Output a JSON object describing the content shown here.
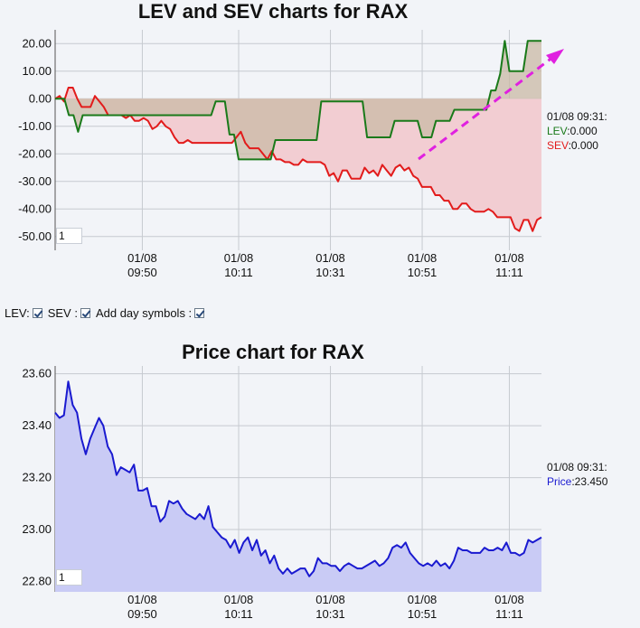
{
  "chart_data": [
    {
      "type": "line",
      "title": "LEV and SEV charts for RAX",
      "x_ticks": [
        "01/08|09:50",
        "01/08|10:11",
        "01/08|10:31",
        "01/08|10:51",
        "01/08|11:11"
      ],
      "y_ticks": [
        "20.00",
        "10.00",
        "0.00",
        "-10.00",
        "-20.00",
        "-30.00",
        "-40.00",
        "-50.00"
      ],
      "ylim": [
        -55,
        25
      ],
      "xlim": [
        0,
        106
      ],
      "grid": true,
      "series": [
        {
          "name": "LEV",
          "color": "#1a7a1a",
          "fill_color": "#d3d8d6",
          "values": [
            0,
            0,
            0,
            -6,
            -6,
            -12,
            -6,
            -6,
            -6,
            -6,
            -6,
            -6,
            -6,
            -6,
            -6,
            -6,
            -6,
            -6,
            -6,
            -6,
            -6,
            -6,
            -6,
            -6,
            -6,
            -6,
            -6,
            -6,
            -6,
            -6,
            -6,
            -6,
            -6,
            -6,
            -6,
            -1,
            -1,
            -1,
            -13,
            -13,
            -22,
            -22,
            -22,
            -22,
            -22,
            -22,
            -22,
            -22,
            -15,
            -15,
            -15,
            -15,
            -15,
            -15,
            -15,
            -15,
            -15,
            -15,
            -1,
            -1,
            -1,
            -1,
            -1,
            -1,
            -1,
            -1,
            -1,
            -1,
            -14,
            -14,
            -14,
            -14,
            -14,
            -14,
            -8,
            -8,
            -8,
            -8,
            -8,
            -8,
            -14,
            -14,
            -14,
            -8,
            -8,
            -8,
            -8,
            -4,
            -4,
            -4,
            -4,
            -4,
            -4,
            -4,
            -4,
            3,
            3,
            9,
            21,
            10,
            10,
            10,
            10,
            21,
            21,
            21,
            21
          ]
        },
        {
          "name": "SEV",
          "color": "#e21b1b",
          "fill_color": "#f2cdd2",
          "values": [
            0,
            1,
            -1,
            4,
            4,
            0,
            -3,
            -3,
            -3,
            1,
            -1,
            -3,
            -6,
            -6,
            -6,
            -6,
            -7,
            -6,
            -8,
            -8,
            -7,
            -8,
            -11,
            -10,
            -8,
            -10,
            -11,
            -14,
            -16,
            -16,
            -15,
            -16,
            -16,
            -16,
            -16,
            -16,
            -16,
            -16,
            -16,
            -16,
            -16,
            -14,
            -12,
            -16,
            -18,
            -18,
            -18,
            -20,
            -22,
            -19,
            -22,
            -22,
            -23,
            -23,
            -24,
            -24,
            -22,
            -23,
            -23,
            -23,
            -23,
            -24,
            -28,
            -27,
            -30,
            -26,
            -26,
            -29,
            -29,
            -29,
            -25,
            -27,
            -26,
            -28,
            -24,
            -26,
            -28,
            -25,
            -24,
            -26,
            -25,
            -28,
            -29,
            -32,
            -32,
            -32,
            -35,
            -35,
            -37,
            -37,
            -40,
            -40,
            -38,
            -38,
            -40,
            -41,
            -41,
            -41,
            -40,
            -41,
            -43,
            -43,
            -43,
            -43,
            -47,
            -48,
            -44,
            -44,
            -48,
            -44,
            -43
          ]
        }
      ],
      "tooltip": {
        "time": "01/08 09:31:",
        "lev_label": "LEV",
        "lev_value": ":0.000",
        "sev_label": "SEV",
        "sev_value": ":0.000"
      },
      "zoom_value": "1"
    },
    {
      "type": "area",
      "title": "Price chart for RAX",
      "x_ticks": [
        "01/08|09:50",
        "01/08|10:11",
        "01/08|10:31",
        "01/08|10:51",
        "01/08|11:11"
      ],
      "y_ticks": [
        "23.60",
        "23.40",
        "23.20",
        "23.00",
        "22.80"
      ],
      "ylim": [
        22.76,
        23.63
      ],
      "xlim": [
        0,
        106
      ],
      "grid": true,
      "series": [
        {
          "name": "Price",
          "color": "#1a1ad0",
          "fill_color": "#c9cbf5",
          "values": [
            23.45,
            23.43,
            23.44,
            23.57,
            23.48,
            23.45,
            23.35,
            23.29,
            23.35,
            23.39,
            23.43,
            23.4,
            23.32,
            23.29,
            23.21,
            23.24,
            23.23,
            23.22,
            23.25,
            23.15,
            23.15,
            23.16,
            23.09,
            23.09,
            23.03,
            23.05,
            23.11,
            23.1,
            23.11,
            23.08,
            23.06,
            23.05,
            23.04,
            23.06,
            23.04,
            23.09,
            23.01,
            22.99,
            22.97,
            22.96,
            22.93,
            22.96,
            22.91,
            22.95,
            22.97,
            22.92,
            22.96,
            22.9,
            22.92,
            22.87,
            22.9,
            22.85,
            22.83,
            22.85,
            22.83,
            22.84,
            22.85,
            22.85,
            22.82,
            22.84,
            22.89,
            22.87,
            22.87,
            22.86,
            22.86,
            22.84,
            22.86,
            22.87,
            22.86,
            22.85,
            22.85,
            22.86,
            22.87,
            22.88,
            22.86,
            22.87,
            22.89,
            22.93,
            22.94,
            22.93,
            22.95,
            22.91,
            22.89,
            22.87,
            22.86,
            22.87,
            22.86,
            22.88,
            22.86,
            22.87,
            22.85,
            22.88,
            22.93,
            22.92,
            22.92,
            22.91,
            22.91,
            22.91,
            22.93,
            22.92,
            22.92,
            22.93,
            22.92,
            22.95,
            22.91,
            22.91,
            22.9,
            22.91,
            22.96,
            22.95,
            22.96,
            22.97
          ]
        }
      ],
      "tooltip": {
        "time": "01/08 09:31:",
        "price_label": "Price",
        "price_value": ":23.450"
      },
      "zoom_value": "1"
    }
  ],
  "controls": {
    "lev_label": "LEV:",
    "sev_label": "SEV :",
    "day_symbols_label": "Add day symbols :"
  },
  "trend_arrow_color": "#e020e0"
}
